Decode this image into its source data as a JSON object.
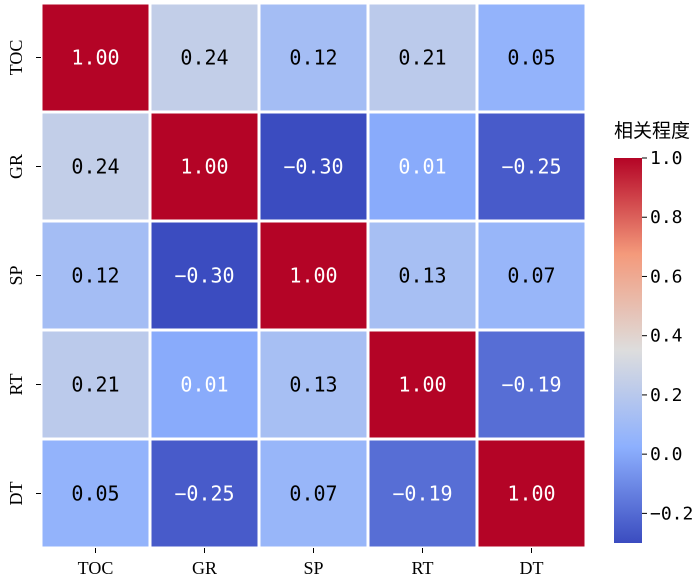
{
  "chart_data": {
    "type": "heatmap",
    "title": "",
    "xlabel": "",
    "ylabel": "",
    "x_categories": [
      "TOC",
      "GR",
      "SP",
      "RT",
      "DT"
    ],
    "y_categories": [
      "TOC",
      "GR",
      "SP",
      "RT",
      "DT"
    ],
    "matrix": [
      [
        1.0,
        0.24,
        0.12,
        0.21,
        0.05
      ],
      [
        0.24,
        1.0,
        -0.3,
        0.01,
        -0.25
      ],
      [
        0.12,
        -0.3,
        1.0,
        0.13,
        0.07
      ],
      [
        0.21,
        0.01,
        0.13,
        1.0,
        -0.19
      ],
      [
        0.05,
        -0.25,
        0.07,
        -0.19,
        1.0
      ]
    ],
    "cell_labels": [
      [
        "1.00",
        "0.24",
        "0.12",
        "0.21",
        "0.05"
      ],
      [
        "0.24",
        "1.00",
        "−0.30",
        "0.01",
        "−0.25"
      ],
      [
        "0.12",
        "−0.30",
        "1.00",
        "0.13",
        "0.07"
      ],
      [
        "0.21",
        "0.01",
        "0.13",
        "1.00",
        "−0.19"
      ],
      [
        "0.05",
        "−0.25",
        "0.07",
        "−0.19",
        "1.00"
      ]
    ],
    "colorbar": {
      "title": "相关程度",
      "range": [
        -0.3,
        1.0
      ],
      "ticks": [
        1.0,
        0.8,
        0.6,
        0.4,
        0.2,
        0.0,
        -0.2
      ],
      "tick_labels": [
        "1.0",
        "0.8",
        "0.6",
        "0.4",
        "0.2",
        "0.0",
        "−0.2"
      ],
      "colormap": "coolwarm"
    },
    "grid": true
  }
}
